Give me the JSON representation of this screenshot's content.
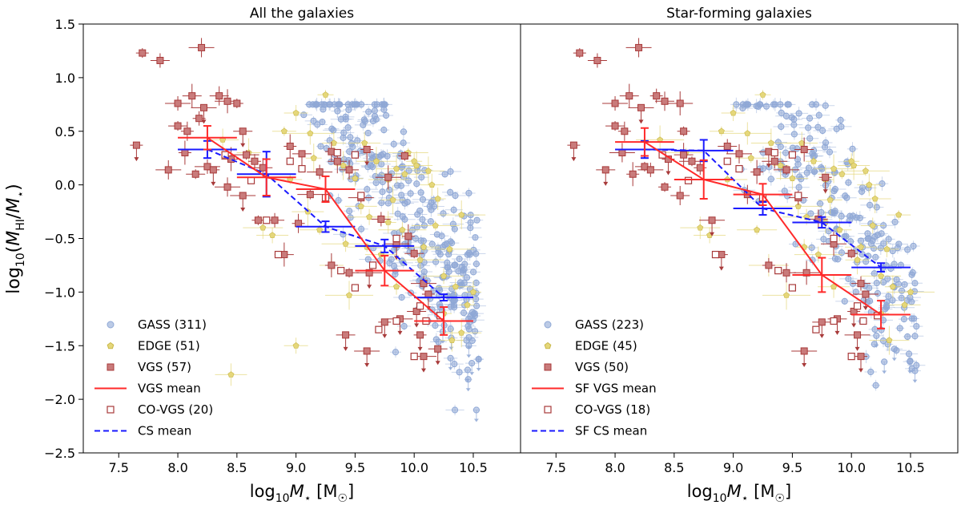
{
  "chart_data": {
    "type": "scatter",
    "shared": {
      "xlabel": "log₁₀M⋆ [M☉]",
      "ylabel": "log₁₀(M_HI/M⋆)",
      "xlim": [
        7.2,
        10.9
      ],
      "ylim": [
        -2.5,
        1.5
      ],
      "xticks": [
        7.5,
        8.0,
        8.5,
        9.0,
        9.5,
        10.0,
        10.5
      ],
      "xtick_labels": [
        "7.5",
        "8.0",
        "8.5",
        "9.0",
        "9.5",
        "10.0",
        "10.5"
      ],
      "yticks": [
        1.5,
        1.0,
        0.5,
        0.0,
        -0.5,
        -1.0,
        -1.5,
        -2.0,
        -2.5
      ],
      "ytick_labels": [
        "1.5",
        "1.0",
        "0.5",
        "0.0",
        "−0.5",
        "−1.0",
        "−1.5",
        "−2.0",
        "−2.5"
      ],
      "grid": false,
      "legend_position": "lower-left",
      "colors": {
        "gass": "#8fa8d6",
        "edge": "#e5d77a",
        "vgs_fill": "#c97b7b",
        "vgs_edge": "#a83a3a",
        "vgs_mean": "#ff2a2a",
        "cs_mean": "#1a1aff"
      }
    },
    "panels": [
      {
        "title": "All the galaxies",
        "legend": [
          {
            "label": "GASS (311)",
            "marker": "gass-circle"
          },
          {
            "label": "EDGE (51)",
            "marker": "edge-pentagon"
          },
          {
            "label": "VGS (57)",
            "marker": "vgs-square-filled"
          },
          {
            "label": "VGS mean",
            "marker": "red-line"
          },
          {
            "label": "CO-VGS (20)",
            "marker": "vgs-square-open"
          },
          {
            "label": "CS mean",
            "marker": "blue-dashed-line"
          }
        ],
        "vgs_mean": [
          {
            "x": 8.25,
            "y": 0.44,
            "xerr": 0.25,
            "yerr": 0.11
          },
          {
            "x": 8.75,
            "y": 0.07,
            "xerr": 0.25,
            "yerr": 0.17
          },
          {
            "x": 9.25,
            "y": -0.04,
            "xerr": 0.25,
            "yerr": 0.12
          },
          {
            "x": 9.75,
            "y": -0.8,
            "xerr": 0.25,
            "yerr": 0.14
          },
          {
            "x": 10.25,
            "y": -1.27,
            "xerr": 0.25,
            "yerr": 0.13
          }
        ],
        "cs_mean": [
          {
            "x": 8.25,
            "y": 0.33,
            "xerr": 0.25,
            "yerr": 0.08
          },
          {
            "x": 8.75,
            "y": 0.1,
            "xerr": 0.25,
            "yerr": 0.21
          },
          {
            "x": 9.25,
            "y": -0.39,
            "xerr": 0.25,
            "yerr": 0.05
          },
          {
            "x": 9.75,
            "y": -0.57,
            "xerr": 0.25,
            "yerr": 0.06
          },
          {
            "x": 10.25,
            "y": -1.05,
            "xerr": 0.25,
            "yerr": 0.03
          }
        ],
        "vgs": [
          [
            7.7,
            1.23
          ],
          [
            7.85,
            1.16
          ],
          [
            8.2,
            1.28
          ],
          [
            7.65,
            0.37
          ],
          [
            8.0,
            0.55
          ],
          [
            8.0,
            0.76
          ],
          [
            8.08,
            0.5
          ],
          [
            8.12,
            0.83
          ],
          [
            8.22,
            0.72
          ],
          [
            8.18,
            0.62
          ],
          [
            8.35,
            0.83
          ],
          [
            8.42,
            0.78
          ],
          [
            8.5,
            0.76
          ],
          [
            8.55,
            0.5
          ],
          [
            7.92,
            0.14
          ],
          [
            8.06,
            0.3
          ],
          [
            8.15,
            0.1
          ],
          [
            8.25,
            0.17
          ],
          [
            8.3,
            0.14
          ],
          [
            8.45,
            0.24
          ],
          [
            8.58,
            0.28
          ],
          [
            8.65,
            0.22
          ],
          [
            8.72,
            0.16
          ],
          [
            8.55,
            -0.1
          ],
          [
            8.68,
            -0.33
          ],
          [
            8.82,
            -0.33
          ],
          [
            8.42,
            -0.02
          ],
          [
            8.95,
            0.36
          ],
          [
            9.05,
            0.29
          ],
          [
            9.2,
            0.12
          ],
          [
            9.3,
            0.31
          ],
          [
            9.35,
            0.22
          ],
          [
            9.12,
            -0.09
          ],
          [
            9.6,
            0.33
          ],
          [
            9.45,
            0.14
          ],
          [
            9.78,
            0.07
          ],
          [
            9.92,
            0.27
          ],
          [
            9.72,
            -0.32
          ],
          [
            9.85,
            -0.55
          ],
          [
            9.95,
            -0.48
          ],
          [
            10.0,
            -0.64
          ],
          [
            10.08,
            -0.92
          ],
          [
            10.12,
            -1.02
          ],
          [
            10.02,
            -1.18
          ],
          [
            9.88,
            -1.25
          ],
          [
            10.05,
            -1.4
          ],
          [
            10.2,
            -1.53
          ],
          [
            10.08,
            -1.6
          ],
          [
            9.75,
            -1.28
          ],
          [
            9.42,
            -1.4
          ],
          [
            9.6,
            -1.55
          ],
          [
            9.3,
            -0.75
          ],
          [
            9.45,
            -0.82
          ],
          [
            9.62,
            -0.82
          ],
          [
            9.02,
            -0.36
          ],
          [
            8.9,
            -0.65
          ],
          [
            9.55,
            -0.12
          ]
        ],
        "vgs_open": [
          [
            8.4,
            0.28
          ],
          [
            8.62,
            0.04
          ],
          [
            8.95,
            0.22
          ],
          [
            9.05,
            0.15
          ],
          [
            9.35,
            0.3
          ],
          [
            9.5,
            0.28
          ],
          [
            8.85,
            -0.65
          ],
          [
            9.25,
            -0.12
          ],
          [
            9.55,
            -0.1
          ],
          [
            9.85,
            -0.5
          ],
          [
            9.38,
            -0.8
          ],
          [
            9.5,
            -0.96
          ],
          [
            9.85,
            -1.27
          ],
          [
            10.1,
            -1.27
          ],
          [
            10.0,
            -1.6
          ],
          [
            10.22,
            -1.22
          ],
          [
            9.7,
            -1.35
          ],
          [
            10.05,
            -1.13
          ],
          [
            9.65,
            -0.75
          ],
          [
            8.75,
            -0.33
          ]
        ],
        "edge": [
          [
            9.25,
            0.84
          ],
          [
            9.0,
            0.67
          ],
          [
            9.58,
            0.39
          ],
          [
            9.85,
            0.15
          ],
          [
            9.92,
            0.1
          ],
          [
            10.0,
            0.22
          ],
          [
            10.15,
            0.0
          ],
          [
            10.02,
            0.18
          ],
          [
            9.2,
            -0.42
          ],
          [
            9.62,
            -0.3
          ],
          [
            9.78,
            -0.35
          ],
          [
            9.82,
            -0.14
          ],
          [
            10.08,
            -0.58
          ],
          [
            10.25,
            -0.85
          ],
          [
            9.12,
            0.48
          ],
          [
            9.4,
            0.18
          ],
          [
            8.9,
            0.5
          ],
          [
            8.8,
            -0.47
          ],
          [
            8.72,
            -0.4
          ],
          [
            9.45,
            -1.03
          ],
          [
            10.25,
            -1.2
          ],
          [
            9.0,
            -1.5
          ],
          [
            8.45,
            -1.77
          ],
          [
            10.4,
            -1.38
          ],
          [
            10.3,
            -0.6
          ],
          [
            9.5,
            0.06
          ],
          [
            9.32,
            0.39
          ],
          [
            10.12,
            0.13
          ],
          [
            9.6,
            -0.58
          ],
          [
            9.9,
            -0.42
          ],
          [
            10.2,
            -0.13
          ],
          [
            8.6,
            0.3
          ],
          [
            9.72,
            -0.65
          ],
          [
            10.35,
            -0.95
          ],
          [
            10.05,
            -0.7
          ],
          [
            9.15,
            0.25
          ],
          [
            8.95,
            0.05
          ],
          [
            9.55,
            -0.2
          ],
          [
            9.78,
            0.05
          ],
          [
            10.4,
            -0.28
          ],
          [
            10.45,
            -1.12
          ],
          [
            9.3,
            -0.75
          ],
          [
            8.38,
            0.42
          ],
          [
            9.68,
            0.22
          ],
          [
            10.18,
            -0.38
          ],
          [
            9.85,
            -0.95
          ],
          [
            10.32,
            -1.45
          ],
          [
            9.1,
            -0.25
          ],
          [
            9.95,
            0.3
          ],
          [
            9.42,
            -0.55
          ],
          [
            10.5,
            -1.0
          ]
        ]
      },
      {
        "title": "Star-forming galaxies",
        "legend": [
          {
            "label": "GASS (223)",
            "marker": "gass-circle"
          },
          {
            "label": "EDGE (45)",
            "marker": "edge-pentagon"
          },
          {
            "label": "VGS (50)",
            "marker": "vgs-square-filled"
          },
          {
            "label": "SF VGS mean",
            "marker": "red-line"
          },
          {
            "label": "CO-VGS (18)",
            "marker": "vgs-square-open"
          },
          {
            "label": "SF CS mean",
            "marker": "blue-dashed-line"
          }
        ],
        "vgs_mean": [
          {
            "x": 8.25,
            "y": 0.4,
            "xerr": 0.25,
            "yerr": 0.13
          },
          {
            "x": 8.75,
            "y": 0.05,
            "xerr": 0.25,
            "yerr": 0.18
          },
          {
            "x": 9.25,
            "y": -0.09,
            "xerr": 0.25,
            "yerr": 0.1
          },
          {
            "x": 9.75,
            "y": -0.84,
            "xerr": 0.25,
            "yerr": 0.16
          },
          {
            "x": 10.25,
            "y": -1.21,
            "xerr": 0.25,
            "yerr": 0.13
          }
        ],
        "cs_mean": [
          {
            "x": 8.25,
            "y": 0.33,
            "xerr": 0.25,
            "yerr": 0.08
          },
          {
            "x": 8.75,
            "y": 0.32,
            "xerr": 0.25,
            "yerr": 0.1
          },
          {
            "x": 9.25,
            "y": -0.22,
            "xerr": 0.25,
            "yerr": 0.06
          },
          {
            "x": 9.75,
            "y": -0.35,
            "xerr": 0.25,
            "yerr": 0.05
          },
          {
            "x": 10.25,
            "y": -0.77,
            "xerr": 0.25,
            "yerr": 0.04
          }
        ],
        "vgs": [
          [
            7.7,
            1.23
          ],
          [
            7.85,
            1.16
          ],
          [
            8.2,
            1.28
          ],
          [
            7.65,
            0.37
          ],
          [
            8.0,
            0.55
          ],
          [
            8.0,
            0.76
          ],
          [
            8.08,
            0.5
          ],
          [
            8.12,
            0.83
          ],
          [
            8.22,
            0.72
          ],
          [
            8.35,
            0.83
          ],
          [
            8.42,
            0.78
          ],
          [
            8.55,
            0.76
          ],
          [
            8.58,
            0.5
          ],
          [
            7.92,
            0.14
          ],
          [
            8.06,
            0.3
          ],
          [
            8.15,
            0.1
          ],
          [
            8.25,
            0.17
          ],
          [
            8.3,
            0.14
          ],
          [
            8.45,
            0.24
          ],
          [
            8.58,
            0.28
          ],
          [
            8.65,
            0.22
          ],
          [
            8.72,
            0.16
          ],
          [
            8.55,
            -0.1
          ],
          [
            8.82,
            -0.33
          ],
          [
            8.42,
            -0.02
          ],
          [
            8.95,
            0.36
          ],
          [
            9.05,
            0.29
          ],
          [
            9.2,
            0.12
          ],
          [
            9.3,
            0.31
          ],
          [
            9.35,
            0.22
          ],
          [
            9.12,
            -0.09
          ],
          [
            9.6,
            0.33
          ],
          [
            9.45,
            0.14
          ],
          [
            9.78,
            0.07
          ],
          [
            9.72,
            -0.32
          ],
          [
            9.85,
            -0.55
          ],
          [
            10.0,
            -0.64
          ],
          [
            10.08,
            -0.92
          ],
          [
            10.12,
            -1.02
          ],
          [
            10.02,
            -1.18
          ],
          [
            9.88,
            -1.25
          ],
          [
            10.05,
            -1.4
          ],
          [
            10.08,
            -1.6
          ],
          [
            9.75,
            -1.28
          ],
          [
            9.6,
            -1.55
          ],
          [
            9.3,
            -0.75
          ],
          [
            9.45,
            -0.82
          ],
          [
            9.62,
            -0.82
          ],
          [
            8.9,
            -0.65
          ],
          [
            9.55,
            -0.12
          ]
        ],
        "vgs_open": [
          [
            8.4,
            0.28
          ],
          [
            8.62,
            0.04
          ],
          [
            8.95,
            0.22
          ],
          [
            9.05,
            0.15
          ],
          [
            9.35,
            0.3
          ],
          [
            9.5,
            0.28
          ],
          [
            8.85,
            -0.65
          ],
          [
            9.25,
            -0.12
          ],
          [
            9.55,
            -0.1
          ],
          [
            9.85,
            -0.5
          ],
          [
            9.38,
            -0.8
          ],
          [
            9.5,
            -0.96
          ],
          [
            9.85,
            -1.27
          ],
          [
            10.1,
            -1.27
          ],
          [
            10.0,
            -1.6
          ],
          [
            10.22,
            -1.22
          ],
          [
            9.7,
            -1.35
          ],
          [
            10.05,
            -1.13
          ]
        ],
        "edge": [
          [
            9.25,
            0.84
          ],
          [
            9.0,
            0.67
          ],
          [
            9.58,
            0.39
          ],
          [
            9.85,
            0.15
          ],
          [
            9.92,
            0.1
          ],
          [
            10.0,
            0.22
          ],
          [
            10.15,
            0.0
          ],
          [
            10.02,
            0.18
          ],
          [
            9.2,
            -0.42
          ],
          [
            9.62,
            -0.3
          ],
          [
            9.78,
            -0.35
          ],
          [
            9.82,
            -0.14
          ],
          [
            10.08,
            -0.58
          ],
          [
            10.25,
            -0.85
          ],
          [
            9.12,
            0.48
          ],
          [
            9.4,
            0.18
          ],
          [
            8.9,
            0.5
          ],
          [
            8.8,
            -0.47
          ],
          [
            8.72,
            -0.4
          ],
          [
            9.45,
            -1.03
          ],
          [
            10.25,
            -1.2
          ],
          [
            10.3,
            -0.6
          ],
          [
            9.5,
            0.06
          ],
          [
            9.32,
            0.39
          ],
          [
            10.12,
            0.13
          ],
          [
            9.6,
            -0.58
          ],
          [
            9.9,
            -0.42
          ],
          [
            10.2,
            -0.13
          ],
          [
            8.6,
            0.3
          ],
          [
            9.72,
            -0.65
          ],
          [
            10.35,
            -0.95
          ],
          [
            10.05,
            -0.7
          ],
          [
            9.15,
            0.25
          ],
          [
            8.95,
            0.05
          ],
          [
            9.55,
            -0.2
          ],
          [
            9.78,
            0.05
          ],
          [
            10.4,
            -0.28
          ],
          [
            10.45,
            -1.12
          ],
          [
            9.3,
            -0.75
          ],
          [
            8.38,
            0.42
          ],
          [
            9.68,
            0.22
          ],
          [
            10.18,
            -0.38
          ],
          [
            9.85,
            -0.95
          ],
          [
            10.32,
            -1.45
          ],
          [
            10.5,
            -1.0
          ]
        ]
      }
    ]
  }
}
